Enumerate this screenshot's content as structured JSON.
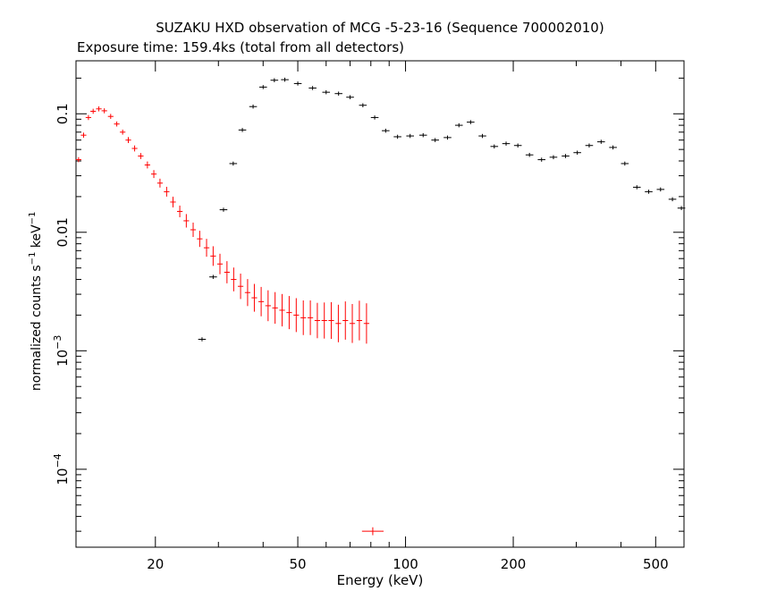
{
  "chart_data": {
    "type": "scatter",
    "title": "SUZAKU HXD observation of MCG -5-23-16 (Sequence 700002010)",
    "subtitle": "Exposure time: 159.4ks (total from all detectors)",
    "xlabel": "Energy (keV)",
    "ylabel": "normalized counts s^-1 keV^-1",
    "xscale": "log",
    "yscale": "log",
    "xlim": [
      12,
      600
    ],
    "ylim": [
      2.2e-05,
      0.28
    ],
    "grid": false,
    "x_ticks": [
      {
        "value": 20,
        "label": "20"
      },
      {
        "value": 50,
        "label": "50"
      },
      {
        "value": 100,
        "label": "100"
      },
      {
        "value": 200,
        "label": "200"
      },
      {
        "value": 500,
        "label": "500"
      }
    ],
    "y_ticks": [
      {
        "value": 0.1,
        "label": "0.1"
      },
      {
        "value": 0.01,
        "label": "0.01"
      },
      {
        "value": 0.001,
        "label": "10",
        "exp": "−3"
      },
      {
        "value": 0.0001,
        "label": "10",
        "exp": "−4"
      }
    ],
    "series": [
      {
        "color": "#ff0000",
        "x": [
          12.2,
          12.6,
          13.0,
          13.4,
          13.9,
          14.4,
          15.0,
          15.6,
          16.2,
          16.8,
          17.5,
          18.2,
          19.0,
          19.8,
          20.6,
          21.5,
          22.4,
          23.4,
          24.4,
          25.5,
          26.6,
          27.8,
          29.0,
          30.3,
          31.7,
          33.1,
          34.6,
          36.2,
          37.8,
          39.5,
          41.3,
          43.2,
          45.2,
          47.3,
          49.5,
          51.8,
          54.2,
          56.7,
          59.3,
          62.0,
          64.9,
          67.9,
          71.0,
          74.3,
          77.8,
          81.0
        ],
        "y": [
          0.041,
          0.066,
          0.093,
          0.105,
          0.11,
          0.106,
          0.095,
          0.082,
          0.07,
          0.06,
          0.051,
          0.044,
          0.037,
          0.031,
          0.026,
          0.022,
          0.018,
          0.015,
          0.0125,
          0.0105,
          0.0088,
          0.0074,
          0.0063,
          0.0054,
          0.0046,
          0.004,
          0.0035,
          0.0031,
          0.0028,
          0.0026,
          0.0024,
          0.0023,
          0.0022,
          0.0021,
          0.002,
          0.0019,
          0.0019,
          0.0018,
          0.0018,
          0.0018,
          0.0017,
          0.0018,
          0.0017,
          0.0018,
          0.0017,
          3e-05
        ],
        "xerr_frac": 0.018,
        "yerr_frac": [
          0.05,
          0.05,
          0.05,
          0.05,
          0.05,
          0.05,
          0.05,
          0.05,
          0.05,
          0.06,
          0.06,
          0.06,
          0.07,
          0.08,
          0.09,
          0.1,
          0.11,
          0.12,
          0.14,
          0.15,
          0.17,
          0.19,
          0.21,
          0.22,
          0.24,
          0.26,
          0.28,
          0.3,
          0.31,
          0.33,
          0.35,
          0.36,
          0.37,
          0.38,
          0.39,
          0.4,
          0.4,
          0.41,
          0.42,
          0.43,
          0.44,
          0.45,
          0.46,
          0.47,
          0.48,
          0.08
        ]
      },
      {
        "color": "#000000",
        "x": [
          27.0,
          29.0,
          31.0,
          33.0,
          35.0,
          37.5,
          40.0,
          43.0,
          46.0,
          50.0,
          55.0,
          60.0,
          65.0,
          70.0,
          76.0,
          82.0,
          88.0,
          95.0,
          103.0,
          112.0,
          121.0,
          131.0,
          141.0,
          152.0,
          164.0,
          177.0,
          191.0,
          206.0,
          222.0,
          240.0,
          259.0,
          280.0,
          302.0,
          326.0,
          352.0,
          380.0,
          410.0,
          443.0,
          478.0,
          516.0,
          557.0,
          590.0
        ],
        "y": [
          0.00125,
          0.0042,
          0.0155,
          0.038,
          0.073,
          0.115,
          0.168,
          0.192,
          0.194,
          0.18,
          0.165,
          0.152,
          0.148,
          0.138,
          0.118,
          0.093,
          0.072,
          0.064,
          0.065,
          0.066,
          0.06,
          0.063,
          0.08,
          0.085,
          0.065,
          0.053,
          0.056,
          0.054,
          0.045,
          0.041,
          0.043,
          0.044,
          0.047,
          0.054,
          0.058,
          0.052,
          0.038,
          0.024,
          0.022,
          0.023,
          0.019,
          0.016
        ],
        "xerr_frac": 0.025,
        "yerr_frac": 0.04
      }
    ]
  }
}
